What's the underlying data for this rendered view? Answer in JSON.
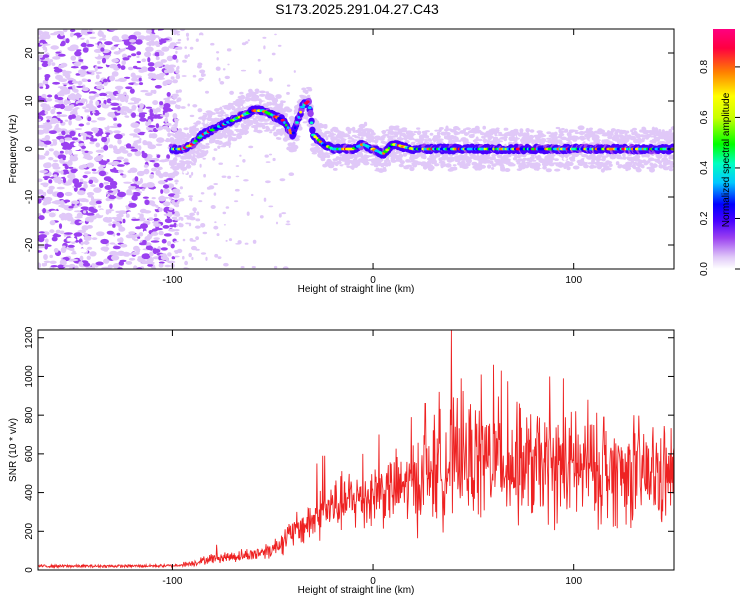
{
  "title": "S173.2025.291.04.27.C43",
  "chart_data": [
    {
      "type": "heatmap",
      "title": "S173.2025.291.04.27.C43",
      "xlabel": "Height of straight line (km)",
      "ylabel": "Frequency (Hz)",
      "xlim": [
        -167,
        150
      ],
      "ylim": [
        -25,
        25
      ],
      "x_ticks": [
        -100,
        0,
        100
      ],
      "y_ticks": [
        -20,
        -10,
        0,
        10,
        20
      ],
      "colorbar": {
        "label": "Normalized spectral amplitude",
        "range": [
          0.0,
          0.95
        ],
        "ticks": [
          0.0,
          0.2,
          0.4,
          0.6,
          0.8
        ],
        "tick_labels": [
          "0.0",
          "0.2",
          "0.4",
          "0.6",
          "0.8"
        ],
        "colors": [
          "#ffffff",
          "#e0c8f8",
          "#9a40f0",
          "#4800ff",
          "#0000ff",
          "#00c8ff",
          "#00ffc0",
          "#00ff00",
          "#c8ff00",
          "#ffff00",
          "#ff8000",
          "#ff0040",
          "#ff0080"
        ]
      },
      "ridge": {
        "x": [
          -100,
          -95,
          -90,
          -85,
          -80,
          -75,
          -70,
          -65,
          -60,
          -55,
          -50,
          -45,
          -40,
          -35,
          -32,
          -30,
          -25,
          -20,
          -15,
          -10,
          -5,
          0,
          5,
          10,
          20,
          30,
          40,
          50,
          60,
          70,
          80,
          90,
          100,
          110,
          120,
          130,
          140,
          150
        ],
        "y": [
          0,
          0,
          1,
          3,
          4,
          5,
          6,
          7,
          8,
          8,
          7,
          6,
          3,
          9,
          10,
          3,
          1,
          0,
          0,
          0,
          1,
          0,
          -1,
          1,
          0,
          0,
          0,
          0,
          0,
          0,
          0,
          0,
          0,
          0,
          0,
          0,
          0,
          0
        ]
      },
      "noise_region_x": [
        -167,
        -98
      ]
    },
    {
      "type": "line",
      "xlabel": "Height of straight line (km)",
      "ylabel": "SNR (10 * v/v)",
      "xlim": [
        -167,
        150
      ],
      "ylim": [
        0,
        1240
      ],
      "x_ticks": [
        -100,
        0,
        100
      ],
      "y_ticks": [
        0,
        200,
        400,
        600,
        800,
        1000,
        1200
      ],
      "series": [
        {
          "name": "SNR",
          "color": "#ee2222",
          "envelope": {
            "x": [
              -167,
              -130,
              -100,
              -90,
              -80,
              -70,
              -60,
              -50,
              -40,
              -30,
              -20,
              -10,
              0,
              10,
              20,
              30,
              40,
              50,
              60,
              70,
              80,
              90,
              100,
              110,
              120,
              130,
              140,
              150
            ],
            "y": [
              20,
              20,
              22,
              35,
              60,
              70,
              80,
              110,
              190,
              260,
              330,
              360,
              390,
              420,
              440,
              520,
              560,
              570,
              570,
              540,
              540,
              530,
              520,
              510,
              500,
              500,
              490,
              480
            ]
          },
          "peaks": [
            {
              "x": 39,
              "y": 1240
            },
            {
              "x": 60,
              "y": 1060
            },
            {
              "x": 64,
              "y": 1030
            },
            {
              "x": 54,
              "y": 1010
            },
            {
              "x": 88,
              "y": 1000
            },
            {
              "x": 95,
              "y": 990
            },
            {
              "x": 44,
              "y": 990
            },
            {
              "x": 67,
              "y": 975
            },
            {
              "x": 33,
              "y": 920
            },
            {
              "x": 107,
              "y": 880
            },
            {
              "x": 73,
              "y": 860
            },
            {
              "x": 26,
              "y": 860
            },
            {
              "x": 101,
              "y": 820
            },
            {
              "x": 115,
              "y": 790
            },
            {
              "x": 130,
              "y": 800
            },
            {
              "x": 19,
              "y": 790
            },
            {
              "x": 3,
              "y": 700
            },
            {
              "x": -25,
              "y": 590
            },
            {
              "x": -24,
              "y": 590
            },
            {
              "x": -5,
              "y": 600
            },
            {
              "x": -28,
              "y": 550
            },
            {
              "x": -38,
              "y": 300
            },
            {
              "x": -78,
              "y": 130
            },
            {
              "x": -45,
              "y": 170
            }
          ]
        }
      ]
    }
  ]
}
